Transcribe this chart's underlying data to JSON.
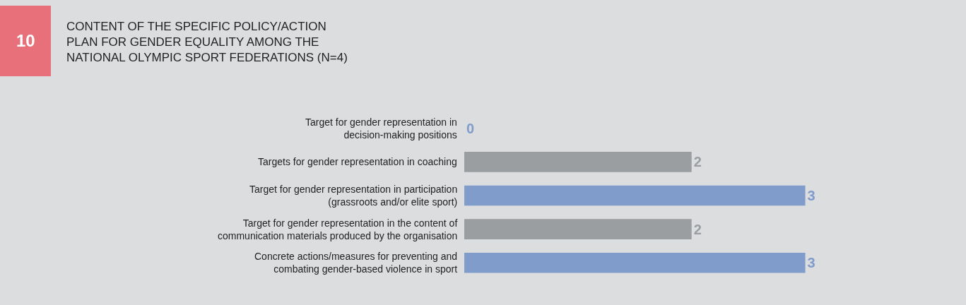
{
  "chart_data": {
    "type": "bar",
    "orientation": "horizontal",
    "title": "CONTENT OF THE SPECIFIC POLICY/ACTION\nPLAN FOR GENDER EQUALITY AMONG THE\nNATIONAL OLYMPIC SPORT FEDERATIONS (N=4)",
    "annotations": [
      "10"
    ],
    "categories": [
      "Target for gender representation in\ndecision-making positions",
      "Targets for gender representation in coaching",
      "Target for gender representation in participation\n(grassroots and/or elite sport)",
      "Target for gender representation in the content of\ncommunication materials produced by the organisation",
      "Concrete actions/measures for preventing and\ncombating gender-based violence in sport"
    ],
    "values": [
      0,
      2,
      3,
      2,
      3
    ],
    "colors": [
      "#7f9ccb",
      "#9b9ea1",
      "#7f9ccb",
      "#9b9ea1",
      "#7f9ccb"
    ],
    "data_labels": true,
    "grid": false,
    "legend": false
  }
}
